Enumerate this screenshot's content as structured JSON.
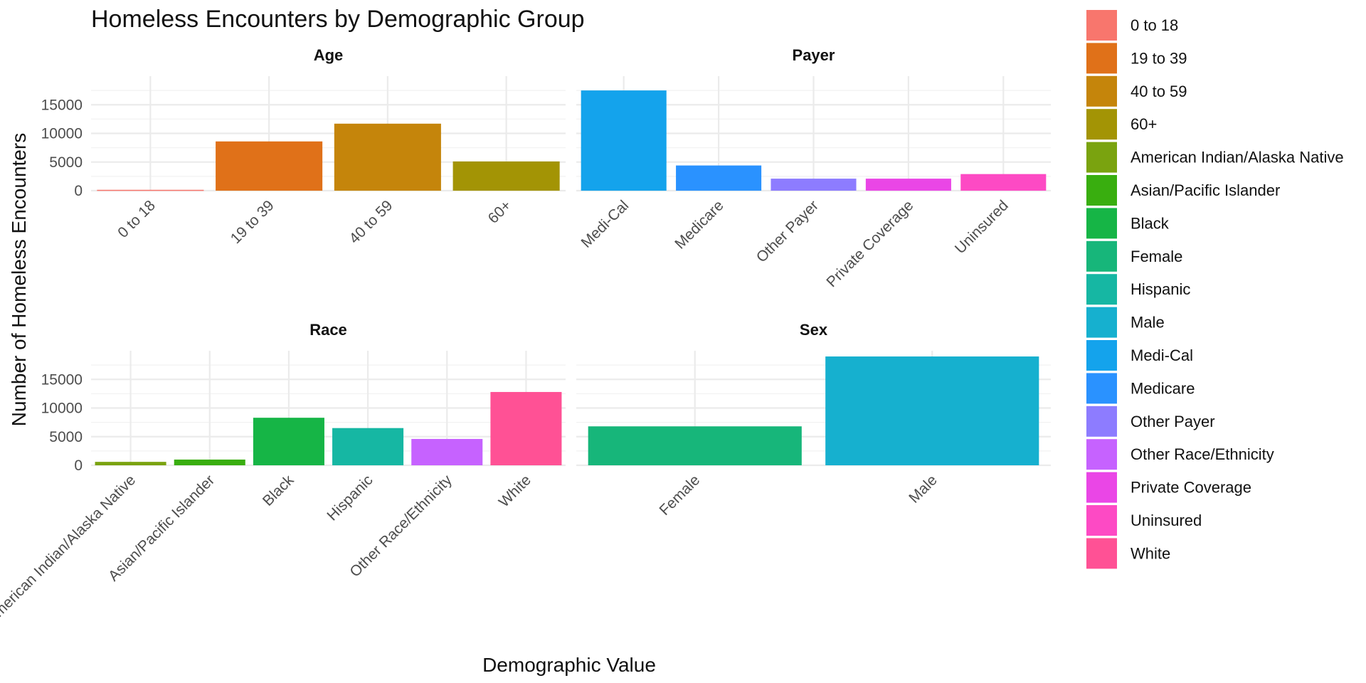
{
  "chart_data": {
    "type": "bar",
    "title": "Homeless Encounters by Demographic Group",
    "xlabel": "Demographic Value",
    "ylabel": "Number of Homeless Encounters",
    "ylim": [
      0,
      20000
    ],
    "yticks": [
      0,
      5000,
      10000,
      15000
    ],
    "grid": true,
    "legend_position": "right",
    "facets": [
      {
        "name": "Age",
        "categories": [
          "0 to 18",
          "19 to 39",
          "40 to 59",
          "60+"
        ],
        "values": [
          150,
          8600,
          11700,
          5100
        ]
      },
      {
        "name": "Payer",
        "categories": [
          "Medi-Cal",
          "Medicare",
          "Other Payer",
          "Private Coverage",
          "Uninsured"
        ],
        "values": [
          17500,
          4400,
          2100,
          2100,
          2900
        ]
      },
      {
        "name": "Race",
        "categories": [
          "American Indian/Alaska Native",
          "Asian/Pacific Islander",
          "Black",
          "Hispanic",
          "Other Race/Ethnicity",
          "White"
        ],
        "values": [
          600,
          1000,
          8300,
          6500,
          4600,
          12800
        ]
      },
      {
        "name": "Sex",
        "categories": [
          "Female",
          "Male"
        ],
        "values": [
          6800,
          19000
        ]
      }
    ],
    "legend": [
      {
        "label": "0 to 18",
        "color": "#F8766D"
      },
      {
        "label": "19 to 39",
        "color": "#E07119"
      },
      {
        "label": "40 to 59",
        "color": "#C5850B"
      },
      {
        "label": "60+",
        "color": "#A39405"
      },
      {
        "label": "American Indian/Alaska Native",
        "color": "#7AA30F"
      },
      {
        "label": "Asian/Pacific Islander",
        "color": "#39AE0F"
      },
      {
        "label": "Black",
        "color": "#16B546"
      },
      {
        "label": "Female",
        "color": "#17B67A"
      },
      {
        "label": "Hispanic",
        "color": "#16B7A3"
      },
      {
        "label": "Male",
        "color": "#16B0CF"
      },
      {
        "label": "Medi-Cal",
        "color": "#14A3EC"
      },
      {
        "label": "Medicare",
        "color": "#2A92FF"
      },
      {
        "label": "Other Payer",
        "color": "#8D7CFF"
      },
      {
        "label": "Other Race/Ethnicity",
        "color": "#C662FF"
      },
      {
        "label": "Private Coverage",
        "color": "#EA46E6"
      },
      {
        "label": "Uninsured",
        "color": "#FD4AC4"
      },
      {
        "label": "White",
        "color": "#FF5195"
      }
    ]
  }
}
